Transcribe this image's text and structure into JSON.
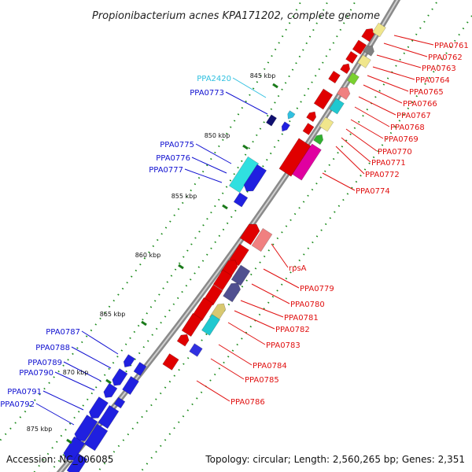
{
  "title": "Propionibacterium acnes KPA171202, complete genome",
  "accession": "Accession: NC_006085",
  "topology": "Topology: circular; Length: 2,560,265 bp; Genes: 2,351",
  "colors": {
    "red": "#e00000",
    "red_label": "#e01010",
    "blue": "#1010d0",
    "cyan": "#30c0e0",
    "backbone": "#888888",
    "tick": "#1a8a1a"
  },
  "kbp_marks": [
    "845 kbp",
    "850 kbp",
    "855 kbp",
    "860 kbp",
    "865 kbp",
    "870 kbp",
    "875 kbp"
  ],
  "right_genes": [
    "PPA0761",
    "PPA0762",
    "PPA0763",
    "PPA0764",
    "PPA0765",
    "PPA0766",
    "PPA0767",
    "PPA0768",
    "PPA0769",
    "PPA0770",
    "PPA0771",
    "PPA0772",
    "PPA0774",
    "rpsA",
    "PPA0779",
    "PPA0780",
    "PPA0781",
    "PPA0782",
    "PPA0783",
    "PPA0784",
    "PPA0785",
    "PPA0786"
  ],
  "left_genes": [
    "PPA2420",
    "PPA0773",
    "PPA0775",
    "PPA0776",
    "PPA0777",
    "PPA0787",
    "PPA0788",
    "PPA0789",
    "PPA0790",
    "PPA0791",
    "PPA0792"
  ]
}
